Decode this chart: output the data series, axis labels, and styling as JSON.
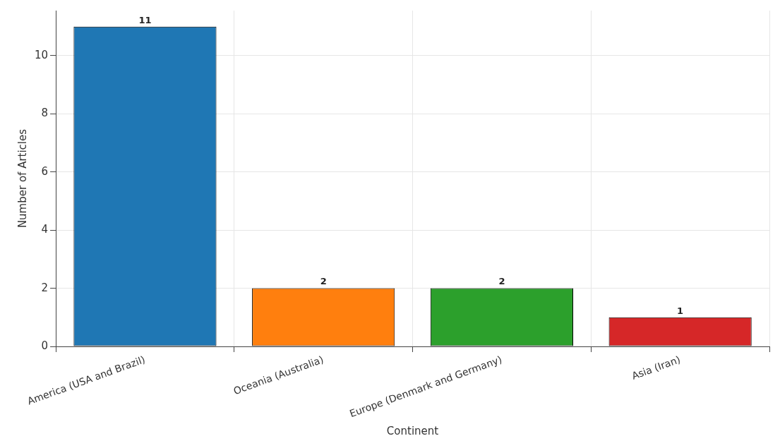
{
  "chart_data": {
    "type": "bar",
    "xlabel": "Continent",
    "ylabel": "Number of Articles",
    "categories": [
      "America (USA and Brazil)",
      "Oceania (Australia)",
      "Europe (Denmark and Germany)",
      "Asia (Iran)"
    ],
    "values": [
      11,
      2,
      2,
      1
    ],
    "colors": [
      "#1f77b4",
      "#ff7f0e",
      "#2ca02c",
      "#d62728"
    ],
    "ylim": [
      0,
      11.55
    ],
    "yticks": [
      0,
      2,
      4,
      6,
      8,
      10
    ],
    "grid": true,
    "data_labels": true
  }
}
